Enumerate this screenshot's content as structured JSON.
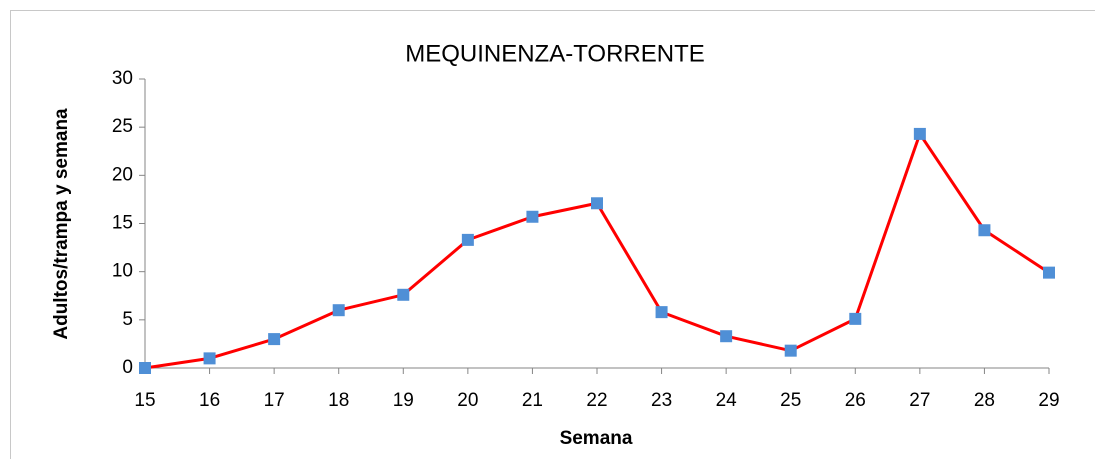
{
  "chart_data": {
    "type": "line",
    "title": "MEQUINENZA-TORRENTE",
    "x_label": "Semana",
    "y_label": "Adultos/trampa y semana",
    "x": [
      15,
      16,
      17,
      18,
      19,
      20,
      21,
      22,
      23,
      24,
      25,
      26,
      27,
      28,
      29
    ],
    "series": [
      {
        "name": "MEQUINENZA-TORRENTE",
        "color": "#ff0000",
        "marker_color": "#4f8fd6",
        "values": [
          0,
          1,
          3,
          6,
          7.6,
          13.3,
          15.7,
          17.1,
          5.8,
          3.3,
          1.8,
          5.1,
          24.3,
          14.3,
          9.9
        ]
      }
    ],
    "xlim": [
      15,
      29
    ],
    "xticks": [
      15,
      16,
      17,
      18,
      19,
      20,
      21,
      22,
      23,
      24,
      25,
      26,
      27,
      28,
      29
    ],
    "ylim": [
      0,
      30
    ],
    "yticks": [
      0,
      5,
      10,
      15,
      20,
      25,
      30
    ],
    "grid": false
  }
}
